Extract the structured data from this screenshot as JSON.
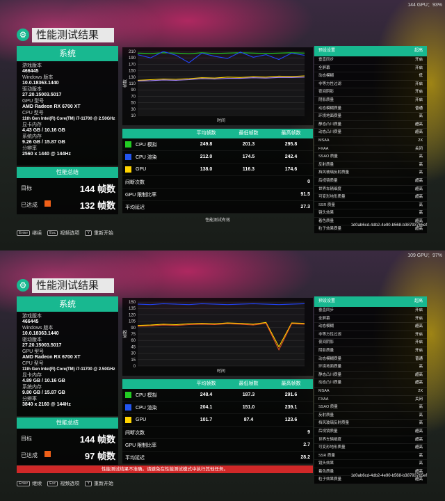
{
  "panels": [
    {
      "fps_top": "144 GPU：93%",
      "title": "性能测试结果",
      "system": {
        "header": "系统",
        "items": [
          {
            "k": "游戏版本",
            "v": "466445"
          },
          {
            "k": "Windows 版本",
            "v": "10.0.18363.1440"
          },
          {
            "k": "驱动版本",
            "v": "27.20.15003.5017"
          },
          {
            "k": "GPU 型号",
            "v": "AMD Radeon RX 6700 XT"
          },
          {
            "k": "CPU 型号",
            "v": "11th Gen Intel(R) Core(TM) i7-11700 @ 2.50GHz"
          },
          {
            "k": "显卡内存",
            "v": "4.43 GB / 10.16 GB"
          },
          {
            "k": "系统内存",
            "v": "9.26 GB / 15.87 GB"
          },
          {
            "k": "分辨率",
            "v": "2560 x 1440 @ 144Hz"
          }
        ]
      },
      "summary": {
        "header": "性能总结",
        "target_label": "目标",
        "target_value": "144 帧数",
        "achieved_label": "已达成",
        "achieved_value": "132 帧数"
      },
      "chart_data": {
        "type": "line",
        "ylabel": "帧数",
        "xlabel": "时间",
        "yticks": [
          "210",
          "190",
          "170",
          "150",
          "130",
          "110",
          "90",
          "70",
          "50",
          "30",
          "10"
        ],
        "ylim": [
          10,
          210
        ],
        "series": [
          {
            "color": "#22cc22",
            "values": [
              205,
              204,
              206,
              205,
              203,
              206,
              204,
              205,
              206,
              205,
              204,
              205,
              206,
              205
            ]
          },
          {
            "color": "#2244ff",
            "values": [
              200,
              190,
              210,
              198,
              175,
              205,
              195,
              188,
              208,
              192,
              200,
              185,
              205,
              198
            ]
          },
          {
            "color": "#ffd400",
            "values": [
              120,
              122,
              124,
              123,
              125,
              128,
              127,
              130,
              129,
              131,
              130,
              133,
              132,
              134
            ]
          },
          {
            "color": "#aa88ff",
            "values": [
              118,
              119,
              121,
              120,
              122,
              125,
              124,
              126,
              126,
              128,
              127,
              129,
              129,
              130
            ]
          }
        ]
      },
      "table": {
        "headers": [
          "",
          "平均帧数",
          "最低帧数",
          "最高帧数"
        ],
        "rows": [
          {
            "label": "CPU 模拟",
            "color": "#22cc22",
            "avg": "249.8",
            "min": "201.3",
            "max": "295.8"
          },
          {
            "label": "CPU 渲染",
            "color": "#2255ee",
            "avg": "212.0",
            "min": "174.5",
            "max": "242.4"
          },
          {
            "label": "GPU",
            "color": "#ffd400",
            "avg": "138.0",
            "min": "116.3",
            "max": "174.6"
          }
        ],
        "extras": [
          {
            "label": "间断次数",
            "value": "0"
          },
          {
            "label": "GPU 限制比率",
            "value": "91.5"
          },
          {
            "label": "平均延迟",
            "value": "27.3"
          }
        ]
      },
      "status_text": "性能测试有效",
      "warning": "",
      "settings": {
        "header_label": "预设设置",
        "header_value": "超高",
        "rows": [
          {
            "k": "垂直同步",
            "v": "开启"
          },
          {
            "k": "全屏幕",
            "v": "开启"
          },
          {
            "k": "动态模糊",
            "v": "低"
          },
          {
            "k": "非等方性过滤",
            "v": "开启"
          },
          {
            "k": "夜间阴影",
            "v": "开启"
          },
          {
            "k": "阴影质量",
            "v": "开启"
          },
          {
            "k": "动态模糊质量",
            "v": "普通"
          },
          {
            "k": "环境地面质量",
            "v": "高"
          },
          {
            "k": "静态凸川质量",
            "v": "超高"
          },
          {
            "k": "动态凸川质量",
            "v": "超高"
          },
          {
            "k": "MSAA",
            "v": "2X"
          },
          {
            "k": "FXAA",
            "v": "关闭"
          },
          {
            "k": "SSAO 质量",
            "v": "高"
          },
          {
            "k": "反射质量",
            "v": "高"
          },
          {
            "k": "挡风玻璃反射质量",
            "v": "高"
          },
          {
            "k": "后视镜质量",
            "v": "超高"
          },
          {
            "k": "世界车辆细度",
            "v": "超高"
          },
          {
            "k": "可变形地形质量",
            "v": "超高"
          },
          {
            "k": "SSR 质量",
            "v": "高"
          },
          {
            "k": "镜头效果",
            "v": "高"
          },
          {
            "k": "着色质量",
            "v": "超高"
          },
          {
            "k": "粒子效果质量",
            "v": "超高"
          }
        ]
      },
      "hash": "1d0ab6cd-4db2-4e90-b568-b38793765ef",
      "keys": [
        {
          "key": "Enter",
          "label": "继续"
        },
        {
          "key": "Esc",
          "label": "视频选项"
        },
        {
          "key": "Y",
          "label": "重新开始"
        }
      ]
    },
    {
      "fps_top": "109 GPU：97%",
      "title": "性能测试结果",
      "system": {
        "header": "系统",
        "items": [
          {
            "k": "游戏版本",
            "v": "466445"
          },
          {
            "k": "Windows 版本",
            "v": "10.0.18363.1440"
          },
          {
            "k": "驱动版本",
            "v": "27.20.15003.5017"
          },
          {
            "k": "GPU 型号",
            "v": "AMD Radeon RX 6700 XT"
          },
          {
            "k": "CPU 型号",
            "v": "11th Gen Intel(R) Core(TM) i7-11700 @ 2.50GHz"
          },
          {
            "k": "显卡内存",
            "v": "4.89 GB / 10.16 GB"
          },
          {
            "k": "系统内存",
            "v": "9.80 GB / 15.87 GB"
          },
          {
            "k": "分辨率",
            "v": "3840 x 2160 @ 144Hz"
          }
        ]
      },
      "summary": {
        "header": "性能总结",
        "target_label": "目标",
        "target_value": "144 帧数",
        "achieved_label": "已达成",
        "achieved_value": "97 帧数"
      },
      "chart_data": {
        "type": "line",
        "ylabel": "帧数",
        "xlabel": "时间",
        "yticks": [
          "150",
          "135",
          "120",
          "105",
          "90",
          "75",
          "60",
          "45",
          "30",
          "15",
          "0"
        ],
        "ylim": [
          0,
          150
        ],
        "series": [
          {
            "color": "#2244ff",
            "values": [
              145,
              144,
              146,
              145,
              144,
              146,
              145,
              144,
              145,
              146,
              145,
              144,
              145,
              146
            ]
          },
          {
            "color": "#ffd400",
            "values": [
              95,
              96,
              98,
              97,
              99,
              100,
              99,
              101,
              100,
              98,
              102,
              45,
              101,
              100
            ]
          },
          {
            "color": "#e05020",
            "values": [
              93,
              94,
              96,
              95,
              97,
              98,
              97,
              99,
              98,
              96,
              100,
              38,
              99,
              98
            ]
          }
        ]
      },
      "table": {
        "headers": [
          "",
          "平均帧数",
          "最低帧数",
          "最高帧数"
        ],
        "rows": [
          {
            "label": "CPU 模拟",
            "color": "#22cc22",
            "avg": "248.4",
            "min": "187.3",
            "max": "291.6"
          },
          {
            "label": "CPU 渲染",
            "color": "#2255ee",
            "avg": "204.1",
            "min": "151.0",
            "max": "239.1"
          },
          {
            "label": "GPU",
            "color": "#ffd400",
            "avg": "101.7",
            "min": "87.4",
            "max": "123.6"
          }
        ],
        "extras": [
          {
            "label": "间断次数",
            "value": "9"
          },
          {
            "label": "GPU 限制比率",
            "value": "2.7"
          },
          {
            "label": "平均延迟",
            "value": "28.2"
          }
        ]
      },
      "status_text": "",
      "warning": "性能测试结果不准确。请避免在性能测试模式中执行其他任务。",
      "settings": {
        "header_label": "预设设置",
        "header_value": "超高",
        "rows": [
          {
            "k": "垂直同步",
            "v": "开启"
          },
          {
            "k": "全屏幕",
            "v": "开启"
          },
          {
            "k": "动态模糊",
            "v": "超高"
          },
          {
            "k": "非等方性过滤",
            "v": "开启"
          },
          {
            "k": "夜间阴影",
            "v": "开启"
          },
          {
            "k": "阴影质量",
            "v": "开启"
          },
          {
            "k": "动态模糊质量",
            "v": "普通"
          },
          {
            "k": "环境地面质量",
            "v": "高"
          },
          {
            "k": "静态凸川质量",
            "v": "超高"
          },
          {
            "k": "动态凸川质量",
            "v": "超高"
          },
          {
            "k": "MSAA",
            "v": "2X"
          },
          {
            "k": "FXAA",
            "v": "关闭"
          },
          {
            "k": "SSAO 质量",
            "v": "高"
          },
          {
            "k": "反射质量",
            "v": "高"
          },
          {
            "k": "挡风玻璃反射质量",
            "v": "高"
          },
          {
            "k": "后视镜质量",
            "v": "超高"
          },
          {
            "k": "世界车辆细度",
            "v": "超高"
          },
          {
            "k": "可变形地形质量",
            "v": "超高"
          },
          {
            "k": "SSR 质量",
            "v": "高"
          },
          {
            "k": "镜头效果",
            "v": "高"
          },
          {
            "k": "着色质量",
            "v": "超高"
          },
          {
            "k": "粒子效果质量",
            "v": "超高"
          }
        ]
      },
      "hash": "1d0ab6cd-4db2-4e90-b568-b38793765ef",
      "keys": [
        {
          "key": "Enter",
          "label": "继续"
        },
        {
          "key": "Esc",
          "label": "视频选项"
        },
        {
          "key": "Y",
          "label": "重新开始"
        }
      ]
    }
  ]
}
